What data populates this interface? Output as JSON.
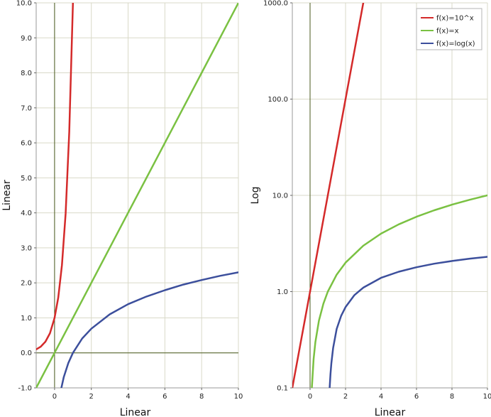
{
  "chart_data": [
    {
      "type": "line",
      "xlabel": "Linear",
      "ylabel": "Linear",
      "xscale": "linear",
      "yscale": "linear",
      "xlim": [
        -1,
        10
      ],
      "ylim": [
        -1,
        10
      ],
      "x_ticks": [
        {
          "value": 0,
          "label": "0"
        },
        {
          "value": 2,
          "label": "2"
        },
        {
          "value": 4,
          "label": "4"
        },
        {
          "value": 6,
          "label": "6"
        },
        {
          "value": 8,
          "label": "8"
        },
        {
          "value": 10,
          "label": "10"
        }
      ],
      "y_ticks": [
        {
          "value": -1,
          "label": "-1.0"
        },
        {
          "value": 0,
          "label": "0.0"
        },
        {
          "value": 1,
          "label": "1.0"
        },
        {
          "value": 2,
          "label": "2.0"
        },
        {
          "value": 3,
          "label": "3.0"
        },
        {
          "value": 4,
          "label": "4.0"
        },
        {
          "value": 5,
          "label": "5.0"
        },
        {
          "value": 6,
          "label": "6.0"
        },
        {
          "value": 7,
          "label": "7.0"
        },
        {
          "value": 8,
          "label": "8.0"
        },
        {
          "value": 9,
          "label": "9.0"
        },
        {
          "value": 10,
          "label": "10.0"
        }
      ],
      "grid": true,
      "legend": "none",
      "series": [
        {
          "color": "#d42a2a",
          "points": [
            [
              -1,
              0.1
            ],
            [
              -0.75,
              0.18
            ],
            [
              -0.5,
              0.32
            ],
            [
              -0.25,
              0.56
            ],
            [
              0,
              1
            ],
            [
              0.2,
              1.58
            ],
            [
              0.4,
              2.51
            ],
            [
              0.6,
              3.98
            ],
            [
              0.8,
              6.31
            ],
            [
              1,
              10
            ]
          ]
        },
        {
          "color": "#7ac142",
          "points": [
            [
              -1,
              -1
            ],
            [
              0,
              0
            ],
            [
              2,
              2
            ],
            [
              4,
              4
            ],
            [
              6,
              6
            ],
            [
              8,
              8
            ],
            [
              10,
              10
            ]
          ]
        },
        {
          "color": "#3c4f9c",
          "points": [
            [
              0.37,
              -1
            ],
            [
              0.5,
              -0.69
            ],
            [
              0.75,
              -0.29
            ],
            [
              1,
              0
            ],
            [
              1.5,
              0.41
            ],
            [
              2,
              0.69
            ],
            [
              3,
              1.1
            ],
            [
              4,
              1.39
            ],
            [
              5,
              1.61
            ],
            [
              6,
              1.79
            ],
            [
              7,
              1.95
            ],
            [
              8,
              2.08
            ],
            [
              9,
              2.2
            ],
            [
              10,
              2.3
            ]
          ]
        }
      ]
    },
    {
      "type": "line",
      "xlabel": "Linear",
      "ylabel": "Log",
      "xscale": "linear",
      "yscale": "log",
      "xlim": [
        -1,
        10
      ],
      "ylim": [
        0.1,
        1000
      ],
      "x_ticks": [
        {
          "value": 0,
          "label": "0"
        },
        {
          "value": 2,
          "label": "2"
        },
        {
          "value": 4,
          "label": "4"
        },
        {
          "value": 6,
          "label": "6"
        },
        {
          "value": 8,
          "label": "8"
        },
        {
          "value": 10,
          "label": "10"
        }
      ],
      "y_ticks": [
        {
          "value": 0.1,
          "label": "0.1"
        },
        {
          "value": 1,
          "label": "1.0"
        },
        {
          "value": 10,
          "label": "10.0"
        },
        {
          "value": 100,
          "label": "100.0"
        },
        {
          "value": 1000,
          "label": "1000.0"
        }
      ],
      "grid": true,
      "legend": "top-right",
      "legend_entries": [
        "f(x)=10^x",
        "f(x)=x",
        "f(x)=log(x)"
      ],
      "series": [
        {
          "name": "f(x)=10^x",
          "color": "#d42a2a",
          "points": [
            [
              -1,
              0.1
            ],
            [
              0,
              1
            ],
            [
              1,
              10
            ],
            [
              2,
              100
            ],
            [
              3,
              1000
            ]
          ]
        },
        {
          "name": "f(x)=x",
          "color": "#7ac142",
          "points": [
            [
              0.1,
              0.1
            ],
            [
              0.2,
              0.2
            ],
            [
              0.3,
              0.3
            ],
            [
              0.5,
              0.5
            ],
            [
              0.75,
              0.75
            ],
            [
              1,
              1
            ],
            [
              1.5,
              1.5
            ],
            [
              2,
              2
            ],
            [
              3,
              3
            ],
            [
              4,
              4
            ],
            [
              5,
              5
            ],
            [
              6,
              6
            ],
            [
              7,
              7
            ],
            [
              8,
              8
            ],
            [
              9,
              9
            ],
            [
              10,
              10
            ]
          ]
        },
        {
          "name": "f(x)=log(x)",
          "color": "#3c4f9c",
          "points": [
            [
              1.105,
              0.1
            ],
            [
              1.15,
              0.14
            ],
            [
              1.2,
              0.18
            ],
            [
              1.3,
              0.26
            ],
            [
              1.5,
              0.41
            ],
            [
              1.75,
              0.56
            ],
            [
              2,
              0.69
            ],
            [
              2.5,
              0.92
            ],
            [
              3,
              1.1
            ],
            [
              4,
              1.39
            ],
            [
              5,
              1.61
            ],
            [
              6,
              1.79
            ],
            [
              7,
              1.95
            ],
            [
              8,
              2.08
            ],
            [
              9,
              2.2
            ],
            [
              10,
              2.3
            ]
          ]
        }
      ]
    }
  ]
}
